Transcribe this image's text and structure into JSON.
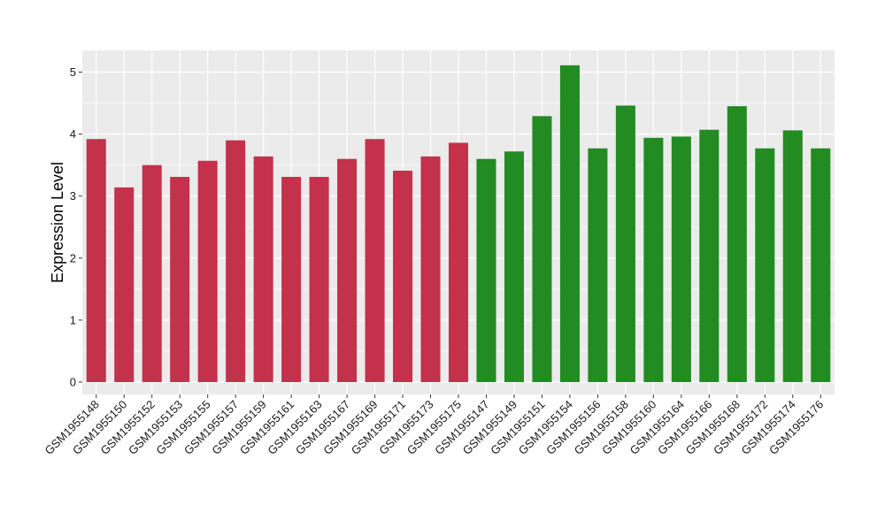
{
  "chart_data": {
    "type": "bar",
    "ylabel": "Expression Level",
    "xlabel": "",
    "ylim": [
      -0.2,
      5.35
    ],
    "yticks": [
      0,
      1,
      2,
      3,
      4,
      5
    ],
    "grid": true,
    "colors": {
      "group1": "#c4314b",
      "group2": "#228b22",
      "panel": "#ebebeb",
      "grid": "#ffffff"
    },
    "categories": [
      "GSM1955148",
      "GSM1955150",
      "GSM1955152",
      "GSM1955153",
      "GSM1955155",
      "GSM1955157",
      "GSM1955159",
      "GSM1955161",
      "GSM1955163",
      "GSM1955167",
      "GSM1955169",
      "GSM1955171",
      "GSM1955173",
      "GSM1955175",
      "GSM1955147",
      "GSM1955149",
      "GSM1955151",
      "GSM1955154",
      "GSM1955156",
      "GSM1955158",
      "GSM1955160",
      "GSM1955164",
      "GSM1955166",
      "GSM1955168",
      "GSM1955172",
      "GSM1955174",
      "GSM1955176"
    ],
    "values": [
      3.92,
      3.14,
      3.5,
      3.31,
      3.57,
      3.9,
      3.64,
      3.31,
      3.31,
      3.6,
      3.92,
      3.41,
      3.64,
      3.86,
      3.6,
      3.72,
      4.29,
      5.11,
      3.77,
      4.46,
      3.94,
      3.96,
      4.07,
      4.45,
      3.77,
      4.06,
      3.77
    ],
    "groups": [
      "group1",
      "group1",
      "group1",
      "group1",
      "group1",
      "group1",
      "group1",
      "group1",
      "group1",
      "group1",
      "group1",
      "group1",
      "group1",
      "group1",
      "group2",
      "group2",
      "group2",
      "group2",
      "group2",
      "group2",
      "group2",
      "group2",
      "group2",
      "group2",
      "group2",
      "group2",
      "group2"
    ]
  }
}
